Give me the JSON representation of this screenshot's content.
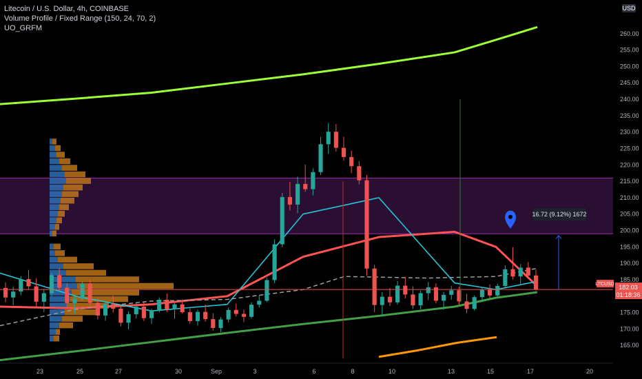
{
  "legend": {
    "symbol_line": "Litecoin / U.S. Dollar, 4h, COINBASE",
    "indicator_1": "Volume Profile / Fixed Range (150, 24, 70, 2)",
    "indicator_2": "UO_GRFM"
  },
  "currency_badge": "USD",
  "last_price": {
    "value": "182.03",
    "symbol": "LTCUSD",
    "countdown": "01:18:36"
  },
  "measure_label": "16.72 (9.12%) 1672",
  "colors": {
    "background": "#000000",
    "up": "#26a69a",
    "down": "#ef5350",
    "zone_fill": "#2a0f33",
    "zone_border": "#9c27b0",
    "ma_lime": "#9cff3a",
    "ma_green": "#43a047",
    "ma_red": "#ff5252",
    "ma_orange": "#ff9800",
    "ma_cyan": "#26c6da",
    "price_line": "#ef5350",
    "marker": "#2962ff"
  },
  "chart_data": {
    "type": "candlestick",
    "ylim": [
      160,
      265
    ],
    "y_ticks": [
      "165.00",
      "170.00",
      "175.00",
      "180.00",
      "185.00",
      "190.00",
      "195.00",
      "200.00",
      "205.00",
      "210.00",
      "215.00",
      "220.00",
      "225.00",
      "230.00",
      "235.00",
      "240.00",
      "245.00",
      "250.00",
      "255.00",
      "260.00"
    ],
    "x_ticks": [
      "23",
      "25",
      "27",
      "30",
      "Sep",
      "3",
      "6",
      "8",
      "10",
      "13",
      "15",
      "17",
      "20"
    ],
    "resistance_zone": [
      199,
      216
    ],
    "current_price": 182.03,
    "ohlc": [
      [
        182.5,
        184.2,
        178.1,
        179.6
      ],
      [
        179.6,
        183.0,
        177.2,
        181.4
      ],
      [
        181.4,
        186.1,
        180.3,
        185.2
      ],
      [
        185.2,
        188.0,
        182.1,
        183.0
      ],
      [
        183.0,
        185.5,
        176.4,
        178.3
      ],
      [
        178.3,
        182.2,
        175.1,
        180.9
      ],
      [
        180.9,
        187.2,
        180.0,
        186.4
      ],
      [
        186.4,
        188.6,
        181.7,
        182.6
      ],
      [
        182.6,
        184.0,
        176.8,
        177.9
      ],
      [
        177.9,
        180.5,
        174.6,
        179.2
      ],
      [
        179.2,
        184.7,
        178.5,
        183.8
      ],
      [
        183.8,
        185.1,
        177.3,
        178.0
      ],
      [
        178.0,
        179.4,
        172.9,
        174.1
      ],
      [
        174.1,
        178.3,
        172.5,
        177.6
      ],
      [
        177.6,
        180.2,
        175.0,
        176.2
      ],
      [
        176.2,
        177.0,
        170.8,
        171.9
      ],
      [
        171.9,
        175.4,
        169.9,
        174.5
      ],
      [
        174.5,
        177.9,
        173.2,
        176.8
      ],
      [
        176.8,
        178.1,
        172.4,
        173.3
      ],
      [
        173.3,
        176.2,
        171.5,
        175.7
      ],
      [
        175.7,
        179.6,
        175.0,
        178.9
      ],
      [
        178.9,
        180.8,
        175.2,
        176.0
      ],
      [
        176.0,
        178.4,
        173.1,
        177.5
      ],
      [
        177.5,
        179.0,
        174.7,
        175.1
      ],
      [
        175.1,
        176.3,
        171.6,
        172.4
      ],
      [
        172.4,
        175.9,
        171.0,
        175.2
      ],
      [
        175.2,
        177.4,
        172.2,
        173.0
      ],
      [
        173.0,
        174.8,
        169.5,
        170.3
      ],
      [
        170.3,
        173.6,
        169.0,
        172.9
      ],
      [
        172.9,
        176.5,
        172.0,
        175.8
      ],
      [
        175.8,
        177.7,
        173.8,
        174.6
      ],
      [
        174.6,
        175.9,
        172.1,
        173.7
      ],
      [
        173.7,
        178.2,
        173.2,
        177.4
      ],
      [
        177.4,
        180.3,
        176.5,
        178.6
      ],
      [
        178.6,
        185.6,
        178.2,
        184.9
      ],
      [
        184.9,
        197.3,
        184.0,
        195.8
      ],
      [
        195.8,
        211.5,
        194.9,
        210.2
      ],
      [
        210.2,
        214.8,
        206.1,
        207.9
      ],
      [
        207.9,
        216.4,
        205.3,
        214.2
      ],
      [
        214.2,
        220.1,
        211.8,
        212.6
      ],
      [
        212.6,
        218.9,
        210.7,
        217.8
      ],
      [
        217.8,
        228.5,
        216.9,
        226.3
      ],
      [
        226.3,
        232.8,
        223.4,
        230.1
      ],
      [
        230.1,
        232.4,
        224.0,
        225.2
      ],
      [
        225.2,
        228.6,
        221.3,
        222.4
      ],
      [
        222.4,
        224.3,
        217.5,
        219.6
      ],
      [
        219.6,
        221.2,
        214.1,
        215.3
      ],
      [
        215.3,
        216.9,
        186.2,
        188.4
      ],
      [
        188.4,
        189.6,
        175.1,
        177.3
      ],
      [
        177.3,
        181.2,
        173.9,
        179.8
      ],
      [
        179.8,
        182.5,
        177.0,
        178.1
      ],
      [
        178.1,
        184.6,
        177.4,
        183.2
      ],
      [
        183.2,
        185.9,
        179.3,
        180.5
      ],
      [
        180.5,
        183.0,
        176.1,
        177.2
      ],
      [
        177.2,
        181.7,
        176.0,
        180.9
      ],
      [
        180.9,
        184.3,
        178.8,
        182.7
      ],
      [
        182.7,
        183.9,
        177.8,
        178.6
      ],
      [
        178.6,
        181.3,
        175.9,
        180.4
      ],
      [
        180.4,
        183.1,
        178.9,
        181.8
      ],
      [
        181.8,
        182.9,
        177.3,
        178.4
      ],
      [
        178.4,
        180.7,
        174.8,
        176.1
      ],
      [
        176.1,
        180.2,
        175.6,
        179.7
      ],
      [
        179.7,
        182.5,
        178.2,
        181.9
      ],
      [
        181.9,
        183.6,
        179.4,
        180.2
      ],
      [
        180.2,
        183.8,
        179.7,
        183.1
      ],
      [
        183.1,
        189.4,
        182.6,
        188.2
      ],
      [
        188.2,
        194.9,
        185.1,
        186.0
      ],
      [
        186.0,
        189.8,
        183.4,
        188.7
      ],
      [
        188.7,
        190.4,
        185.6,
        186.3
      ],
      [
        186.3,
        188.1,
        181.7,
        182.03
      ]
    ],
    "moving_averages": [
      {
        "color_key": "ma_lime",
        "values": [
          238.5,
          240.2,
          242.0,
          244.8,
          247.6,
          250.8,
          254.3,
          258.1,
          262.0
        ]
      },
      {
        "color_key": "ma_green",
        "values": [
          160.5,
          163.2,
          166.0,
          168.8,
          171.5,
          174.0,
          176.8,
          179.5,
          181.2
        ]
      },
      {
        "color_key": "ma_red",
        "values": [
          176.8,
          176.3,
          177.5,
          180.0,
          192.0,
          198.0,
          199.6,
          195.0,
          183.0
        ]
      },
      {
        "color_key": "ma_orange",
        "values": [
          null,
          null,
          null,
          null,
          null,
          161.5,
          163.5,
          165.8,
          167.5
        ]
      },
      {
        "color_key": "ma_cyan",
        "values": [
          187.0,
          180.0,
          175.5,
          177.5,
          205.0,
          210.0,
          184.0,
          182.0,
          184.5
        ]
      }
    ],
    "volume_profile": {
      "buckets": [
        [
          166,
          6,
          8
        ],
        [
          168,
          9,
          6
        ],
        [
          170,
          14,
          20
        ],
        [
          172,
          18,
          30
        ],
        [
          174,
          22,
          48
        ],
        [
          176,
          26,
          60
        ],
        [
          178,
          30,
          84
        ],
        [
          180,
          32,
          98
        ],
        [
          182,
          40,
          140
        ],
        [
          184,
          38,
          92
        ],
        [
          186,
          24,
          58
        ],
        [
          188,
          20,
          44
        ],
        [
          190,
          12,
          28
        ],
        [
          192,
          8,
          14
        ],
        [
          194,
          6,
          10
        ],
        [
          198,
          4,
          6
        ],
        [
          200,
          8,
          6
        ],
        [
          202,
          10,
          8
        ],
        [
          204,
          12,
          10
        ],
        [
          206,
          14,
          14
        ],
        [
          208,
          16,
          20
        ],
        [
          210,
          18,
          24
        ],
        [
          212,
          20,
          28
        ],
        [
          214,
          24,
          36
        ],
        [
          216,
          22,
          30
        ],
        [
          218,
          18,
          22
        ],
        [
          220,
          14,
          16
        ],
        [
          222,
          10,
          12
        ],
        [
          224,
          8,
          8
        ],
        [
          226,
          4,
          6
        ]
      ]
    }
  }
}
